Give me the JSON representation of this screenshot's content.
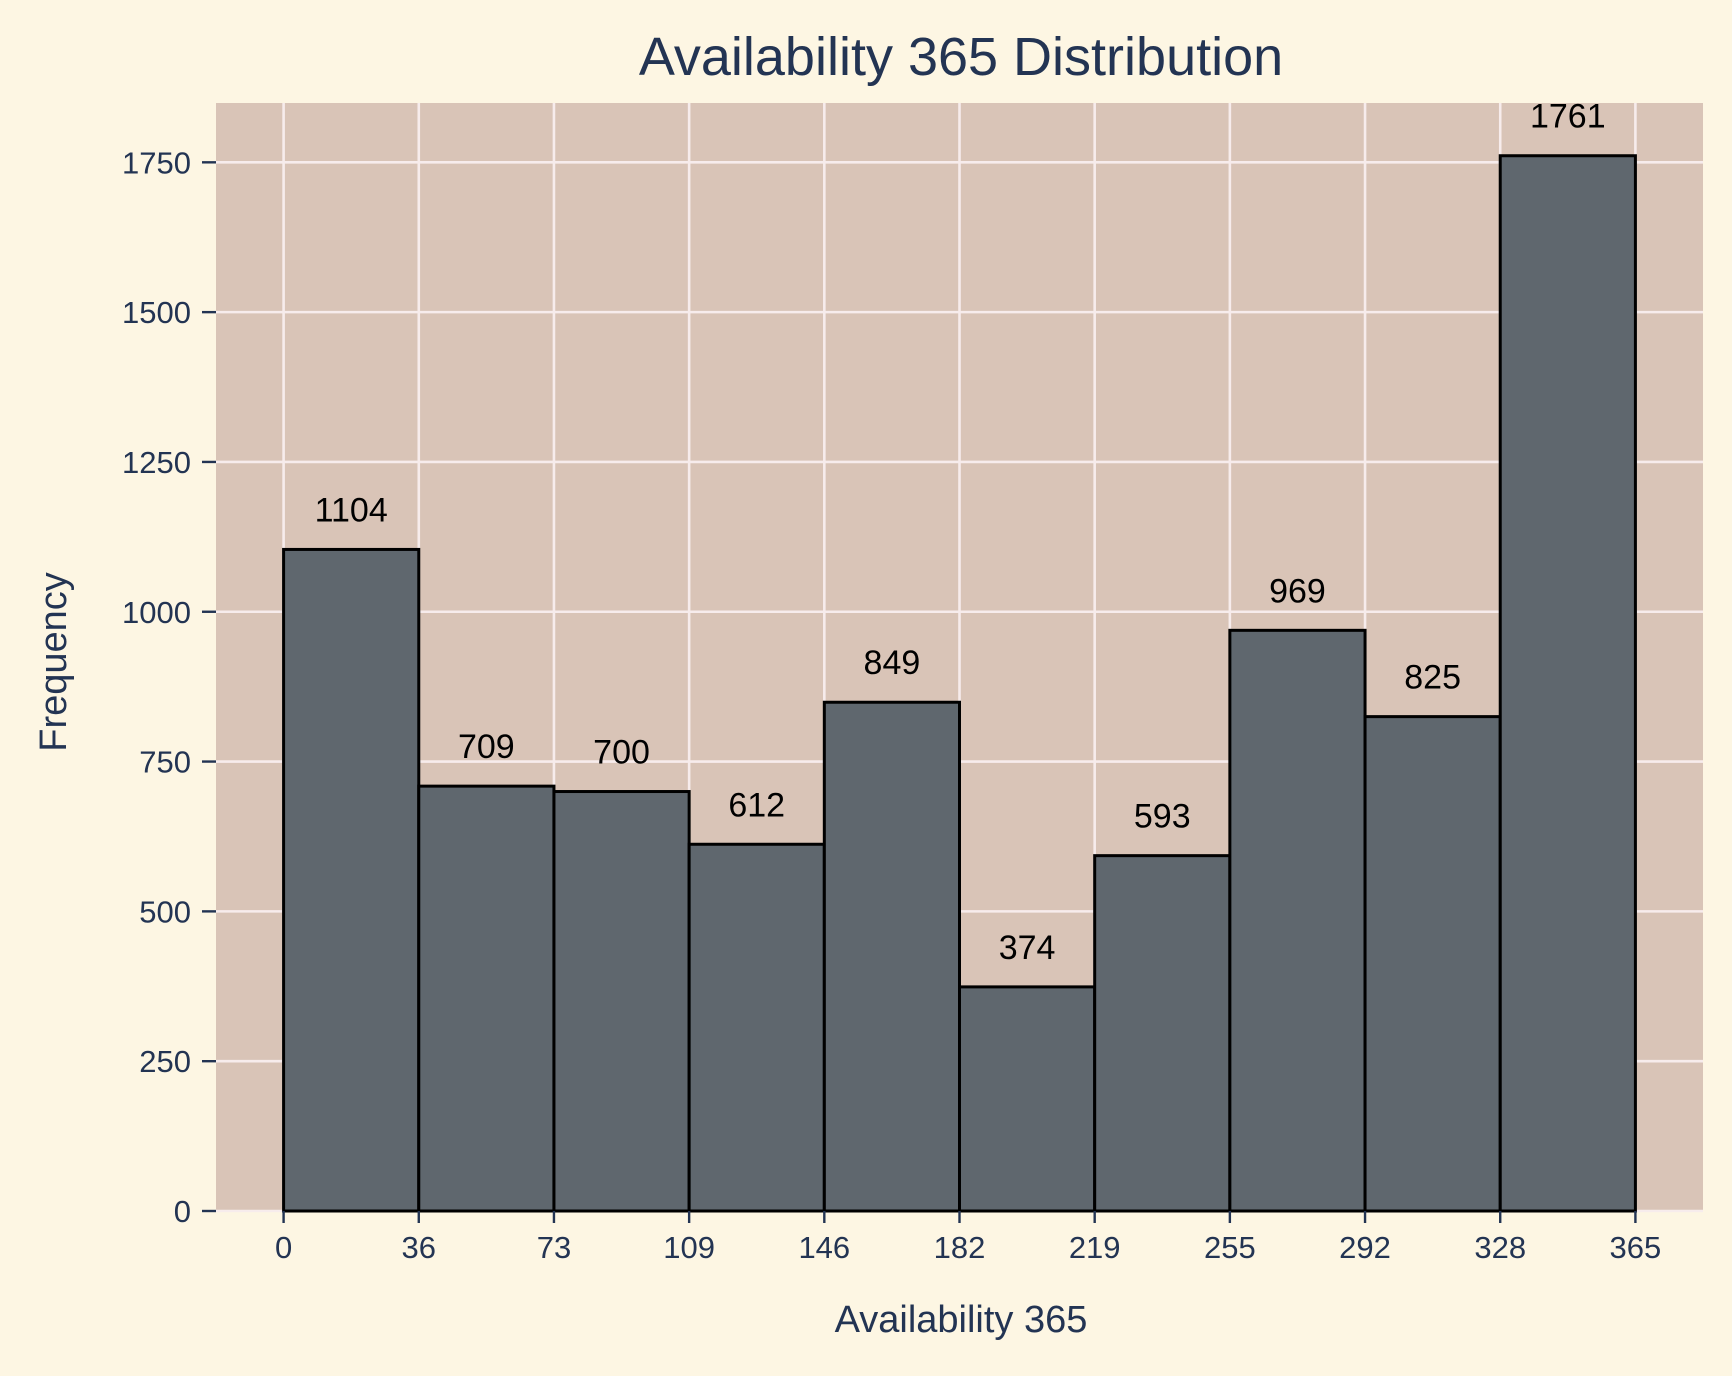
{
  "chart_data": {
    "type": "bar",
    "title": "Availability 365 Distribution",
    "xlabel": "Availability 365",
    "ylabel": "Frequency",
    "bin_edges": [
      0,
      36.5,
      73,
      109.5,
      146,
      182.5,
      219,
      255.5,
      292,
      328.5,
      365
    ],
    "x_tick_labels": [
      "0",
      "36",
      "73",
      "109",
      "146",
      "182",
      "219",
      "255",
      "292",
      "328",
      "365"
    ],
    "values": [
      1104,
      709,
      700,
      612,
      849,
      374,
      593,
      969,
      825,
      1761
    ],
    "data_labels": [
      "1104",
      "709",
      "700",
      "612",
      "849",
      "374",
      "593",
      "969",
      "825",
      "1761"
    ],
    "xlim": [
      -18.25,
      383.25
    ],
    "ylim": [
      0,
      1849
    ],
    "y_ticks": [
      0,
      250,
      500,
      750,
      1000,
      1250,
      1500,
      1750
    ],
    "grid": true,
    "legend": "none",
    "colors": {
      "page_background": "#fdf6e3",
      "plot_background": "#d9c4b7",
      "bar_fill": "#5f676e",
      "bar_edge": "#000000",
      "grid": "#f7ecec",
      "text": "#233453",
      "data_label": "#000000"
    }
  }
}
